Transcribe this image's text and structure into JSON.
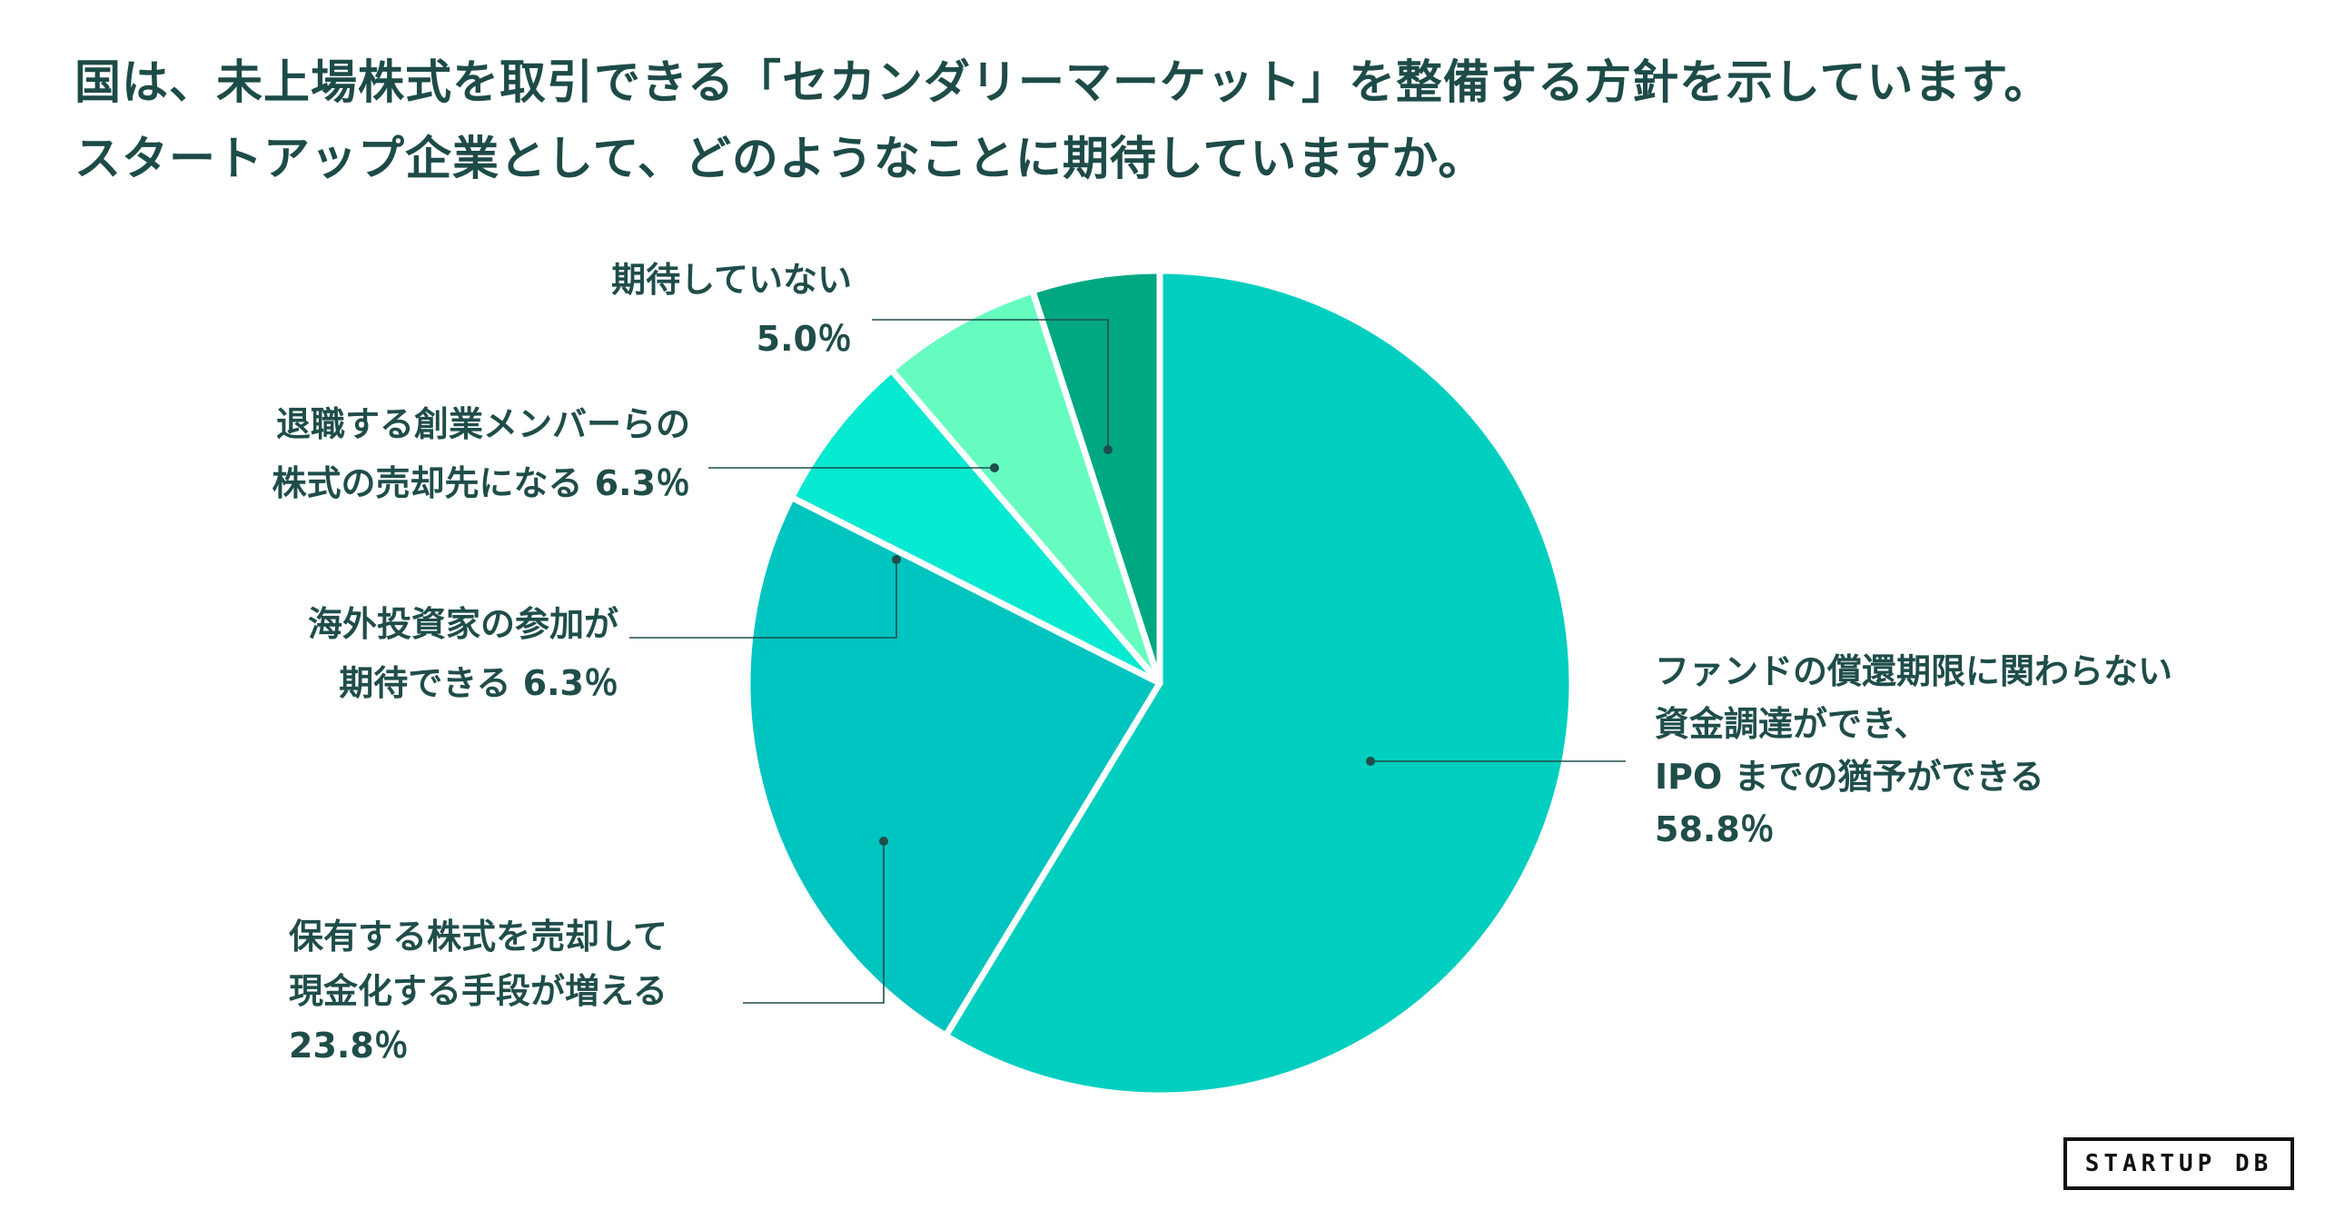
{
  "title_lines": [
    "国は、未上場株式を取引できる「セカンダリーマーケット」を整備する方針を示しています。",
    "スタートアップ企業として、どのようなことに期待していますか。"
  ],
  "logo_text": "STARTUP DB",
  "chart_data": {
    "type": "pie",
    "start_angle_deg": 0,
    "direction": "clockwise",
    "slices": [
      {
        "name": "ファンドの償還期限に関わらない資金調達ができ、IPOまでの猶予ができる",
        "value": 58.8,
        "color": "#00cfbf",
        "label_lines": [
          "ファンドの償還期限に関わらない",
          "資金調達ができ、",
          "IPO までの猶予ができる",
          "58.8％"
        ]
      },
      {
        "name": "保有する株式を売却して現金化する手段が増える",
        "value": 23.8,
        "color": "#00c4c0",
        "label_lines": [
          "保有する株式を売却して",
          "現金化する手段が増える",
          "23.8％"
        ]
      },
      {
        "name": "海外投資家の参加が期待できる",
        "value": 6.3,
        "color": "#05ead0",
        "label_lines": [
          "海外投資家の参加が",
          "期待できる 6.3％"
        ]
      },
      {
        "name": "退職する創業メンバーらの株式の売却先になる",
        "value": 6.3,
        "color": "#66fcc0",
        "label_lines": [
          "退職する創業メンバーらの",
          "株式の売却先になる  6.3％"
        ]
      },
      {
        "name": "期待していない",
        "value": 5.0,
        "color": "#00a882",
        "label_lines": [
          "期待していない",
          "5.0％"
        ]
      }
    ]
  }
}
